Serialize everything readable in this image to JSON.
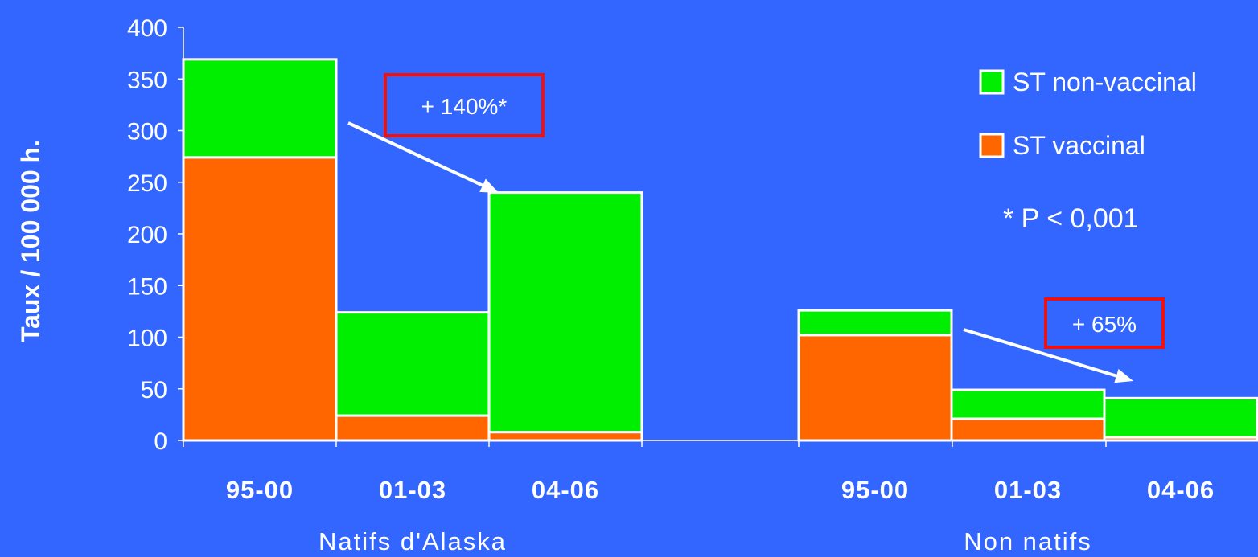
{
  "colors": {
    "background": "#3366ff",
    "vaccinal": "#ff6600",
    "non_vaccinal": "#00ee00",
    "bar_border": "#ffffff",
    "annotation_box": "#ee1111",
    "axis": "#ffffff"
  },
  "chart_data": {
    "type": "bar",
    "stacked": true,
    "ylabel": "Taux / 100 000 h.",
    "ylim": [
      0,
      400
    ],
    "yticks": [
      0,
      50,
      100,
      150,
      200,
      250,
      300,
      350,
      400
    ],
    "groups": [
      {
        "name": "Natifs d'Alaska",
        "categories": [
          "95-00",
          "01-03",
          "04-06"
        ],
        "vaccinal": [
          274,
          24,
          8
        ],
        "non_vaccinal": [
          95,
          100,
          232
        ],
        "annotation": "+ 140%*"
      },
      {
        "name": "Non natifs",
        "categories": [
          "95-00",
          "01-03",
          "04-06"
        ],
        "vaccinal": [
          102,
          21,
          3
        ],
        "non_vaccinal": [
          24,
          28,
          38
        ],
        "annotation": "+ 65%"
      }
    ],
    "legend": {
      "position": "top-right",
      "entries": [
        {
          "label": "ST non-vaccinal",
          "color": "#00ee00"
        },
        {
          "label": "ST vaccinal",
          "color": "#ff6600"
        }
      ]
    },
    "note": "* P < 0,001"
  }
}
